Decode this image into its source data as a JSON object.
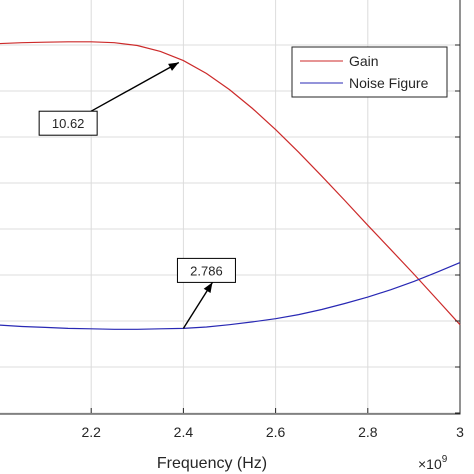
{
  "chart_data": {
    "type": "line",
    "xlabel": "Frequency (Hz)",
    "x_exponent_label": "×10",
    "x_exponent_power": "9",
    "xlim": [
      2.0,
      3.0
    ],
    "x_ticks": [
      2.2,
      2.4,
      2.6,
      2.8,
      3.0
    ],
    "x_tick_labels": [
      "2.2",
      "2.4",
      "2.6",
      "2.8",
      "3"
    ],
    "ylim": [
      8,
      17
    ],
    "y_gridlines": [
      8,
      9,
      10,
      11,
      12,
      13,
      14,
      15,
      16,
      17
    ],
    "grid": true,
    "legend_position": "top-right",
    "series": [
      {
        "name": "Gain",
        "color": "#cc2a2a",
        "x": [
          2.0,
          2.05,
          2.1,
          2.15,
          2.2,
          2.25,
          2.3,
          2.35,
          2.4,
          2.45,
          2.5,
          2.55,
          2.6,
          2.65,
          2.7,
          2.75,
          2.8,
          2.85,
          2.9,
          2.95,
          3.0
        ],
        "y": [
          16.03,
          16.05,
          16.06,
          16.07,
          16.07,
          16.05,
          15.99,
          15.86,
          15.66,
          15.38,
          15.03,
          14.62,
          14.16,
          13.67,
          13.15,
          12.62,
          12.08,
          11.55,
          11.02,
          10.47,
          9.92
        ]
      },
      {
        "name": "Noise Figure",
        "color": "#2828b4",
        "x": [
          2.0,
          2.05,
          2.1,
          2.15,
          2.2,
          2.25,
          2.3,
          2.35,
          2.4,
          2.45,
          2.5,
          2.55,
          2.6,
          2.65,
          2.7,
          2.75,
          2.8,
          2.85,
          2.9,
          2.95,
          3.0
        ],
        "y": [
          9.91,
          9.88,
          9.86,
          9.84,
          9.83,
          9.82,
          9.82,
          9.83,
          9.84,
          9.87,
          9.92,
          9.98,
          10.05,
          10.14,
          10.25,
          10.38,
          10.52,
          10.68,
          10.86,
          11.06,
          11.27
        ]
      }
    ],
    "annotations": [
      {
        "label": "10.62",
        "target_x": 2.39,
        "target_y": 15.62,
        "box_x": 2.15,
        "box_y": 14.3
      },
      {
        "label": "2.786",
        "target_x": 2.4,
        "target_y": 9.84,
        "box_x": 2.45,
        "box_y": 11.1
      }
    ]
  }
}
